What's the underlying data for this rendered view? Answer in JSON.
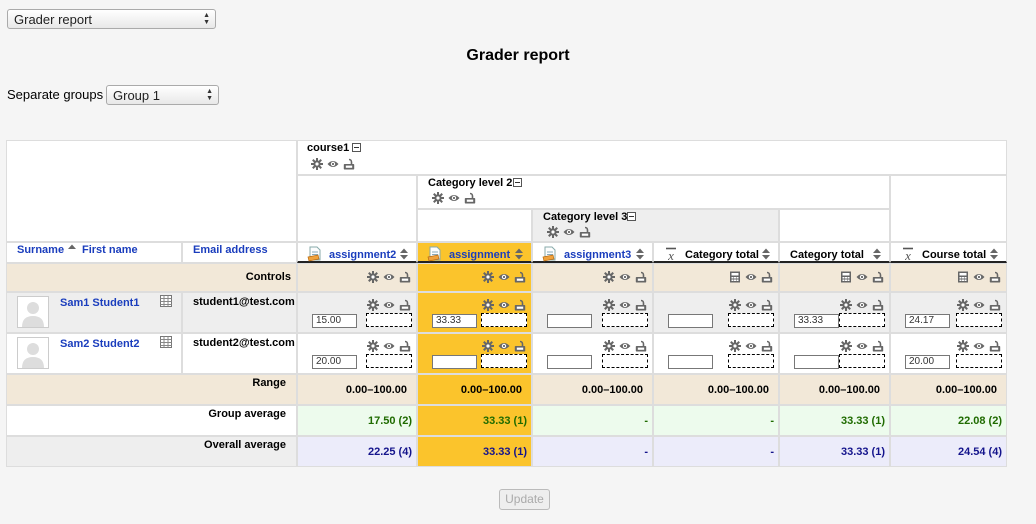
{
  "report_select": {
    "value": "Grader report"
  },
  "page_title": "Grader report",
  "groups": {
    "label": "Separate groups",
    "value": "Group 1"
  },
  "header": {
    "course": "course1",
    "category_level2": "Category level 2",
    "category_level3": "Category level 3",
    "surname": "Surname",
    "first_name": "First name",
    "email": "Email address",
    "columns": [
      "assignment2",
      "assignment",
      "assignment3",
      "Category total",
      "Category total",
      "Course total"
    ]
  },
  "controls_label": "Controls",
  "students": [
    {
      "name": "Sam1 Student1",
      "email": "student1@test.com",
      "grades": [
        "15.00",
        "33.33",
        "",
        "",
        "33.33",
        "24.17"
      ]
    },
    {
      "name": "Sam2 Student2",
      "email": "student2@test.com",
      "grades": [
        "20.00",
        "",
        "",
        "",
        "",
        "20.00"
      ]
    }
  ],
  "range": {
    "label": "Range",
    "values": [
      "0.00–100.00",
      "0.00–100.00",
      "0.00–100.00",
      "0.00–100.00",
      "0.00–100.00",
      "0.00–100.00"
    ]
  },
  "group_average": {
    "label": "Group average",
    "values": [
      "17.50 (2)",
      "33.33 (1)",
      "-",
      "-",
      "33.33 (1)",
      "22.08 (2)"
    ]
  },
  "overall_average": {
    "label": "Overall average",
    "values": [
      "22.25 (4)",
      "33.33 (1)",
      "-",
      "-",
      "33.33 (1)",
      "24.54 (4)"
    ]
  },
  "update_button": "Update",
  "colors": {
    "highlight": "#fbc42c",
    "controls_bg": "#f2e8d8",
    "group_avg_bg": "#edfbed",
    "overall_avg_bg": "#ececfa",
    "link": "#1a3dbd",
    "group_avg_text": "#1f6b00",
    "overall_avg_text": "#14148c"
  }
}
